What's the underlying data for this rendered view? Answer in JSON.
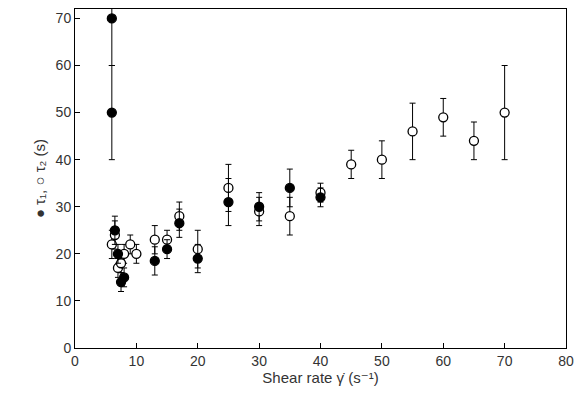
{
  "chart_data": {
    "type": "scatter",
    "x_label": "Shear rate γ̇ (s⁻¹)",
    "y_label": "● τ₁, ○ τ₂ (s)",
    "xlim": [
      0,
      80
    ],
    "xticks": [
      0,
      10,
      20,
      30,
      40,
      50,
      60,
      70,
      80
    ],
    "ylim": [
      0,
      72
    ],
    "yticks": [
      0,
      10,
      20,
      30,
      40,
      50,
      60,
      70
    ],
    "grid": false,
    "series": [
      {
        "name": "τ₂",
        "color": "#000000",
        "marker": "open-circle",
        "x": [
          6,
          6.5,
          7,
          7.5,
          8,
          9,
          10,
          13,
          15,
          17,
          20,
          25,
          30,
          35,
          40,
          45,
          50,
          55,
          60,
          65,
          70
        ],
        "values": [
          22,
          24,
          17,
          18,
          20,
          22,
          20,
          23,
          23,
          28,
          21,
          34,
          29,
          28,
          33,
          39,
          40,
          46,
          49,
          44,
          50
        ],
        "errors": [
          3,
          3,
          2,
          2,
          2,
          2,
          2,
          3,
          2,
          3,
          4,
          5,
          3,
          4,
          2,
          3,
          4,
          6,
          4,
          4,
          10
        ]
      },
      {
        "name": "τ₁",
        "color": "#000000",
        "marker": "filled-circle",
        "x": [
          6,
          6,
          6.5,
          7,
          7.5,
          8,
          13,
          15,
          17,
          20,
          25,
          30,
          35,
          40
        ],
        "values": [
          70,
          50,
          25,
          20,
          14,
          15,
          18.5,
          21,
          26.5,
          19,
          31,
          30,
          34,
          32
        ],
        "errors": [
          10,
          10,
          3,
          2,
          2,
          2,
          3,
          2,
          3,
          3,
          5,
          3,
          4,
          2
        ]
      }
    ]
  }
}
